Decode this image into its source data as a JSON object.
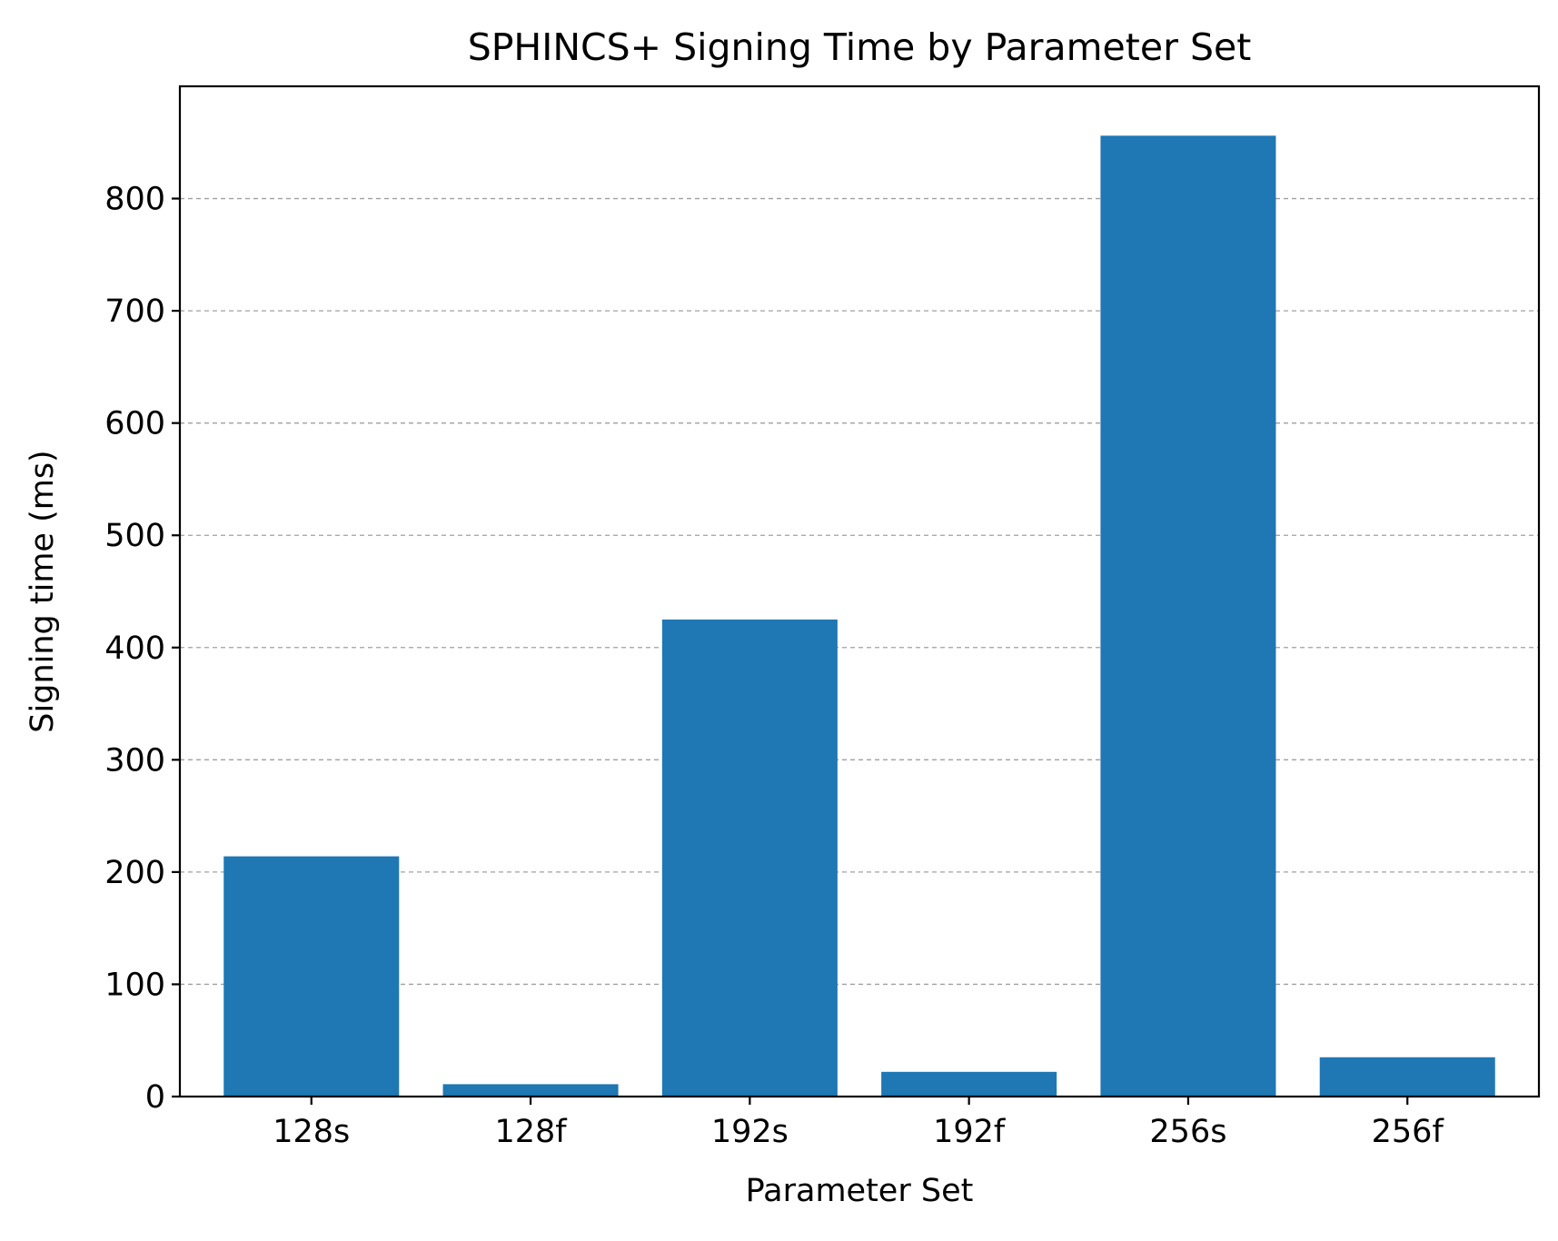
{
  "chart_data": {
    "type": "bar",
    "title": "SPHINCS+ Signing Time by Parameter Set",
    "xlabel": "Parameter Set",
    "ylabel": "Signing time (ms)",
    "categories": [
      "128s",
      "128f",
      "192s",
      "192f",
      "256s",
      "256f"
    ],
    "values": [
      214,
      11,
      425,
      22,
      856,
      35
    ],
    "ylim": [
      0,
      900
    ],
    "yticks": [
      0,
      100,
      200,
      300,
      400,
      500,
      600,
      700,
      800
    ],
    "grid": "y-axis dashed",
    "bar_color": "#1f77b4",
    "grid_color": "#a0a0a0"
  }
}
